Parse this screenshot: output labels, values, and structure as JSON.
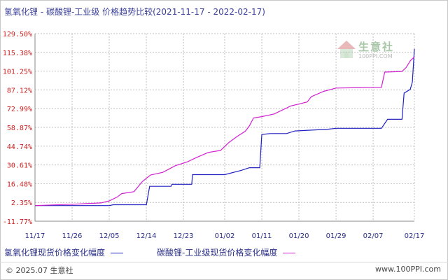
{
  "header": {
    "title": "氢氧化锂 - 碳酸锂-工业级 价格趋势比较(2021-11-17 - 2022-02-17)"
  },
  "watermark": {
    "name": "生意社",
    "url": "100PPI.COM"
  },
  "footer": {
    "copyright": "© 2025.07 生意社",
    "website": "www.100PPI.com"
  },
  "colors": {
    "series_1": "#2020c0",
    "series_2": "#d020d0",
    "y_tick_text": "#cc2020",
    "x_tick_text": "#2a2f88",
    "grid": "#c0c0c0"
  },
  "chart_data": {
    "type": "line",
    "title": "氢氧化锂 - 碳酸锂-工业级 价格趋势比较(2021-11-17 - 2022-02-17)",
    "xlabel": "",
    "ylabel": "",
    "ylim": [
      -11.77,
      129.5
    ],
    "grid": true,
    "legend_position": "bottom",
    "y_ticks": [
      "129.50%",
      "115.38%",
      "101.25%",
      "87.12%",
      "72.99%",
      "58.87%",
      "44.74%",
      "30.61%",
      "16.48%",
      "2.35%",
      "-11.77%"
    ],
    "y_tick_values": [
      129.5,
      115.38,
      101.25,
      87.12,
      72.99,
      58.87,
      44.74,
      30.61,
      16.48,
      2.35,
      -11.77
    ],
    "x_ticks": [
      "11/17",
      "11/26",
      "12/05",
      "12/14",
      "12/23",
      "01/02",
      "01/11",
      "01/20",
      "01/29",
      "02/07",
      "02/17"
    ],
    "x_tick_days": [
      0,
      9,
      18,
      27,
      36,
      46,
      55,
      64,
      73,
      82,
      92
    ],
    "x_range_days": [
      0,
      92
    ],
    "x_start_date": "2021-11-17",
    "series": [
      {
        "name": "氢氧化锂现货价格变化幅度",
        "color": "#2020c0",
        "points": [
          [
            0,
            0
          ],
          [
            18,
            0
          ],
          [
            19,
            0.6
          ],
          [
            27,
            0.6
          ],
          [
            27.8,
            14.5
          ],
          [
            33,
            14.5
          ],
          [
            33.2,
            16
          ],
          [
            38,
            16
          ],
          [
            38.2,
            23.3
          ],
          [
            46,
            23.3
          ],
          [
            50,
            26.5
          ],
          [
            52,
            28.5
          ],
          [
            54.5,
            28.5
          ],
          [
            55,
            53.5
          ],
          [
            57,
            54.2
          ],
          [
            61,
            54.2
          ],
          [
            63,
            56.2
          ],
          [
            71,
            57.5
          ],
          [
            73,
            58.2
          ],
          [
            84,
            58.2
          ],
          [
            85.5,
            65
          ],
          [
            89,
            65
          ],
          [
            89.5,
            84.7
          ],
          [
            91,
            87.5
          ],
          [
            91.5,
            93
          ],
          [
            92,
            118
          ]
        ]
      },
      {
        "name": "碳酸锂-工业级现货价格变化幅度",
        "color": "#d020d0",
        "points": [
          [
            0,
            0
          ],
          [
            9,
            1
          ],
          [
            16,
            2
          ],
          [
            18,
            3.5
          ],
          [
            20,
            6.5
          ],
          [
            21,
            9
          ],
          [
            24,
            10.5
          ],
          [
            26,
            18
          ],
          [
            28,
            23
          ],
          [
            31,
            25
          ],
          [
            34,
            30
          ],
          [
            37,
            33
          ],
          [
            39,
            36
          ],
          [
            42,
            40
          ],
          [
            45,
            41.5
          ],
          [
            47,
            47.5
          ],
          [
            49,
            52
          ],
          [
            51,
            56
          ],
          [
            52,
            60
          ],
          [
            53,
            66
          ],
          [
            55,
            67
          ],
          [
            58,
            69
          ],
          [
            62,
            75
          ],
          [
            66,
            78
          ],
          [
            67,
            82
          ],
          [
            70,
            86
          ],
          [
            73,
            88.5
          ],
          [
            82,
            89
          ],
          [
            84,
            89
          ],
          [
            84.8,
            100.5
          ],
          [
            89,
            101
          ],
          [
            90,
            104
          ],
          [
            91,
            109
          ],
          [
            92,
            112
          ]
        ]
      }
    ]
  },
  "legend": {
    "item_1": "氢氧化锂现货价格变化幅度",
    "item_2": "碳酸锂-工业级现货价格变化幅度"
  }
}
